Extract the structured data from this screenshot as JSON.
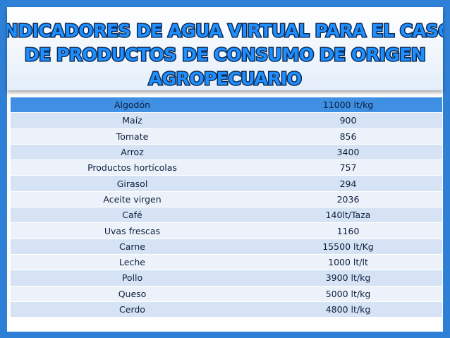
{
  "title_lines": [
    "INDICADORES DE AGUA VIRTUAL PARA EL CASO",
    "DE PRODUCTOS DE CONSUMO DE ORIGEN",
    "AGROPECUARIO"
  ],
  "table": {
    "rows": [
      [
        "Algodón",
        "11000 lt/kg"
      ],
      [
        "Maíz",
        "900"
      ],
      [
        "Tomate",
        "856"
      ],
      [
        "Arroz",
        "3400"
      ],
      [
        "Productos hortícolas",
        "757"
      ],
      [
        "Girasol",
        "294"
      ],
      [
        "Aceite virgen",
        "2036"
      ],
      [
        "Café",
        "140lt/Taza"
      ],
      [
        "Uvas frescas",
        "1160"
      ],
      [
        "Carne",
        "15500 lt/Kg"
      ],
      [
        "Leche",
        "1000 lt/lt"
      ],
      [
        "Pollo",
        "3900 lt/kg"
      ],
      [
        "Queso",
        "5000 lt/kg"
      ],
      [
        "Cerdo",
        "4800 lt/kg"
      ]
    ]
  }
}
